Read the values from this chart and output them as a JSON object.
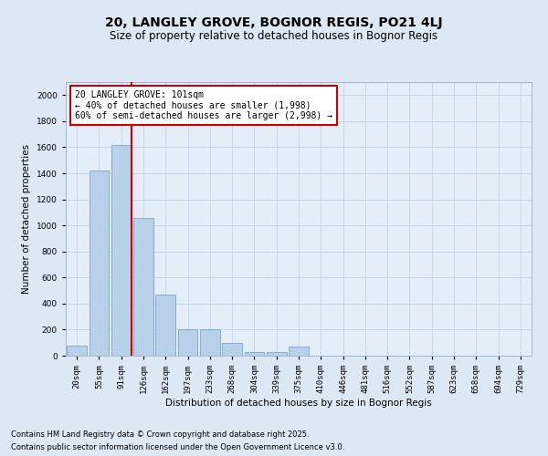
{
  "title": "20, LANGLEY GROVE, BOGNOR REGIS, PO21 4LJ",
  "subtitle": "Size of property relative to detached houses in Bognor Regis",
  "xlabel": "Distribution of detached houses by size in Bognor Regis",
  "ylabel": "Number of detached properties",
  "categories": [
    "20sqm",
    "55sqm",
    "91sqm",
    "126sqm",
    "162sqm",
    "197sqm",
    "233sqm",
    "268sqm",
    "304sqm",
    "339sqm",
    "375sqm",
    "410sqm",
    "446sqm",
    "481sqm",
    "516sqm",
    "552sqm",
    "587sqm",
    "623sqm",
    "658sqm",
    "694sqm",
    "729sqm"
  ],
  "values": [
    80,
    1420,
    1620,
    1060,
    470,
    205,
    205,
    100,
    30,
    25,
    70,
    0,
    0,
    0,
    0,
    0,
    0,
    0,
    0,
    0,
    0
  ],
  "bar_color": "#b8d0e8",
  "bar_edge_color": "#6699cc",
  "vline_color": "#cc0000",
  "vline_x_index": 2.45,
  "annotation_line1": "20 LANGLEY GROVE: 101sqm",
  "annotation_line2": "← 40% of detached houses are smaller (1,998)",
  "annotation_line3": "60% of semi-detached houses are larger (2,998) →",
  "annotation_box_color": "#cc0000",
  "ylim": [
    0,
    2100
  ],
  "yticks": [
    0,
    200,
    400,
    600,
    800,
    1000,
    1200,
    1400,
    1600,
    1800,
    2000
  ],
  "grid_color": "#c0d4e8",
  "bg_color": "#dce8f4",
  "plot_bg_color": "#e4eef8",
  "footnote1": "Contains HM Land Registry data © Crown copyright and database right 2025.",
  "footnote2": "Contains public sector information licensed under the Open Government Licence v3.0.",
  "title_fontsize": 10,
  "subtitle_fontsize": 8.5,
  "axis_label_fontsize": 7.5,
  "tick_fontsize": 6.5,
  "annotation_fontsize": 7,
  "footnote_fontsize": 6
}
